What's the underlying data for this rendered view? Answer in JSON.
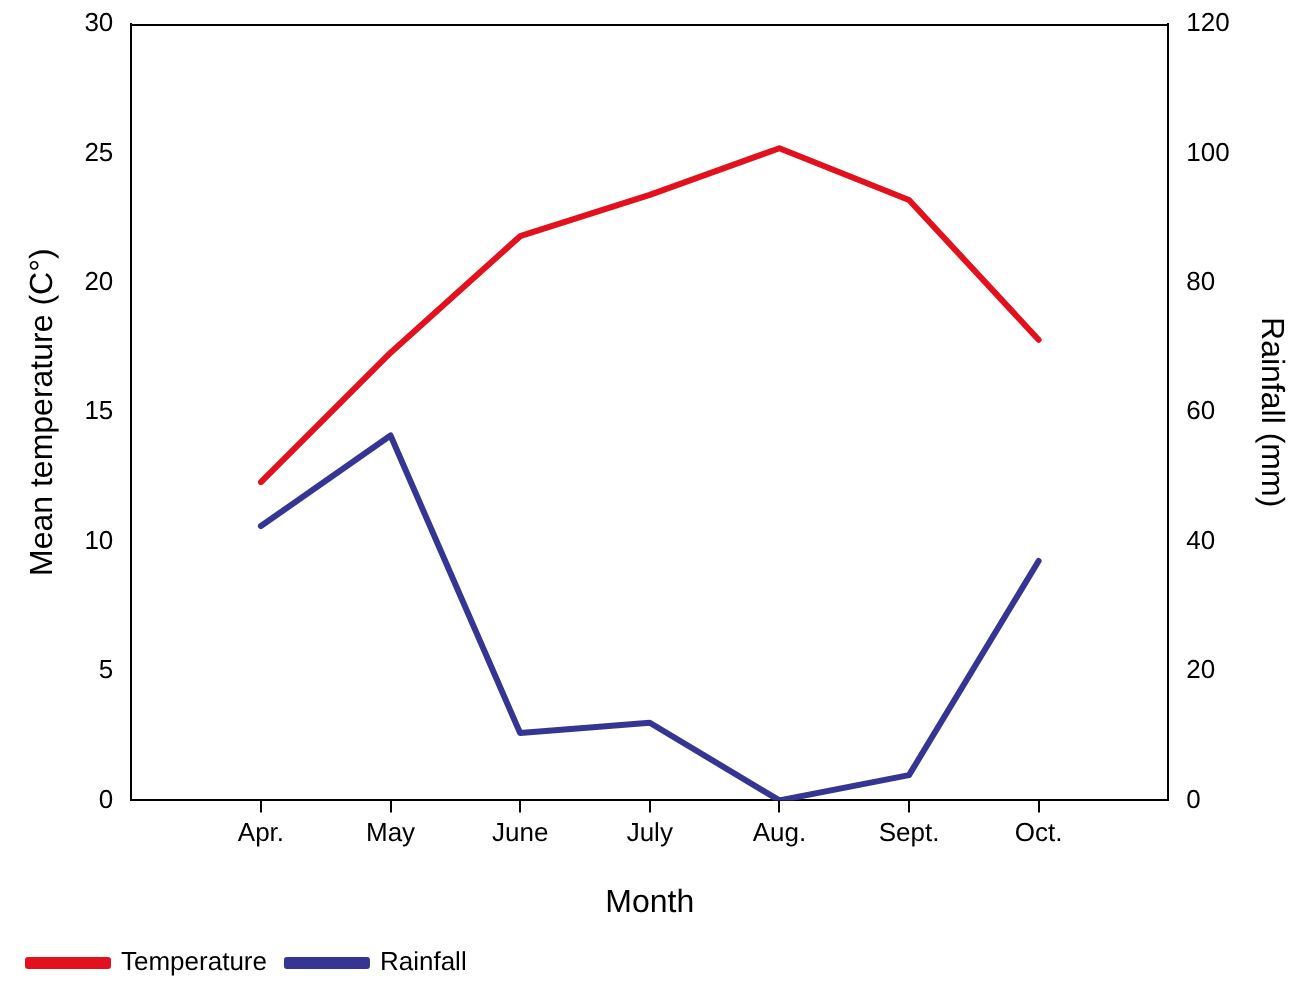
{
  "chart_data": {
    "type": "line",
    "xlabel": "Month",
    "ylabel": "Mean temperature (C°)",
    "y2label": "Rainfall (mm)",
    "categories": [
      "Apr.",
      "May",
      "June",
      "July",
      "Aug.",
      "Sept.",
      "Oct."
    ],
    "series": [
      {
        "name": "Temperature",
        "color": "#e3101e",
        "values": [
          12.3,
          17.3,
          21.8,
          23.4,
          25.2,
          23.2,
          17.8
        ]
      },
      {
        "name": "Rainfall",
        "color": "#353594",
        "axis": "y2",
        "values": [
          42.4,
          56.4,
          10.4,
          12,
          0,
          3.9,
          37
        ]
      }
    ],
    "ylim": [
      0,
      30
    ],
    "yticks": [
      0,
      5,
      10,
      15,
      20,
      25,
      30
    ],
    "y2lim": [
      0,
      120
    ],
    "y2ticks": [
      0,
      20,
      40,
      60,
      80,
      100,
      120
    ],
    "grid": false,
    "legend": "bottom left",
    "marker": "none",
    "line_style": "solid"
  }
}
